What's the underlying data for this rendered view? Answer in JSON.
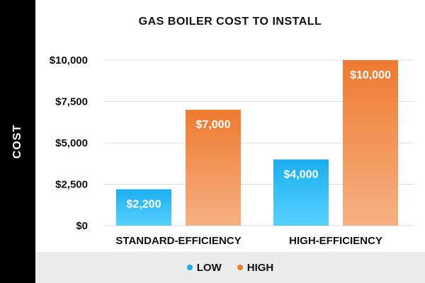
{
  "chart_data": {
    "type": "bar",
    "title": "GAS BOILER COST TO INSTALL",
    "xlabel": "",
    "ylabel": "COST",
    "categories": [
      "STANDARD-EFFICIENCY",
      "HIGH-EFFICIENCY"
    ],
    "series": [
      {
        "name": "LOW",
        "values": [
          2200,
          4000
        ],
        "labels": [
          "$2,200",
          "$4,000"
        ],
        "color_top": "#1aaef0",
        "color_bottom": "#57d1ff"
      },
      {
        "name": "HIGH",
        "values": [
          7000,
          10000
        ],
        "labels": [
          "$7,000",
          "$10,000"
        ],
        "color_top": "#ef7a2f",
        "color_bottom": "#f6b184"
      }
    ],
    "ylim": [
      0,
      10000
    ],
    "yticks": [
      0,
      2500,
      5000,
      7500,
      10000
    ],
    "ytick_labels": [
      "$0",
      "$2,500",
      "$5,000",
      "$7,500",
      "$10,000"
    ],
    "grid": true,
    "legend": "bottom"
  }
}
